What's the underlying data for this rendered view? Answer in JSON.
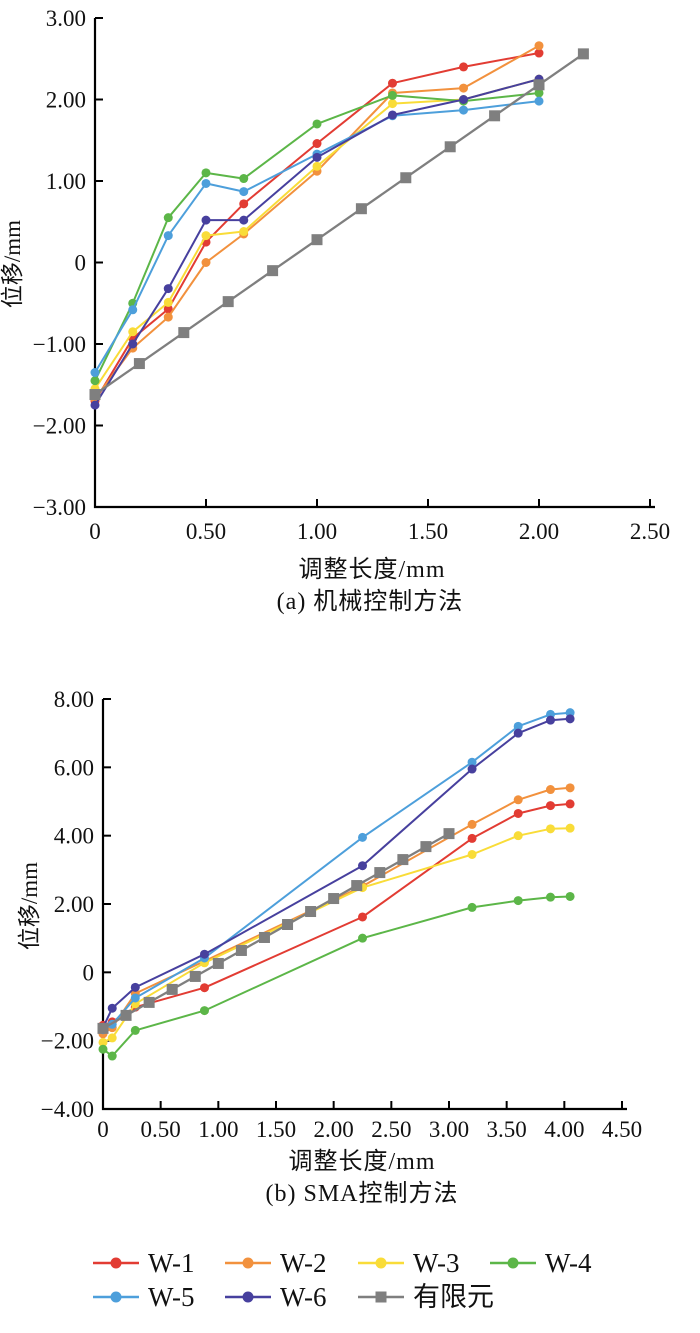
{
  "figure": {
    "panels": [
      {
        "id": "a",
        "xlabel": "调整长度/mm",
        "ylabel": "位移/mm",
        "caption": "(a) 机械控制方法"
      },
      {
        "id": "b",
        "xlabel": "调整长度/mm",
        "ylabel": "位移/mm",
        "caption": "(b) SMA控制方法"
      }
    ]
  },
  "colors": {
    "w1": "#e23c33",
    "w2": "#f2913d",
    "w3": "#f9dc38",
    "w4": "#5cb648",
    "w5": "#4d9fdb",
    "w6": "#47409e",
    "fem": "#7f7f7f",
    "axis": "#000000"
  },
  "legend": {
    "rows": [
      [
        {
          "label": "W-1",
          "color": "#e23c33",
          "marker": "circle"
        },
        {
          "label": "W-2",
          "color": "#f2913d",
          "marker": "circle"
        },
        {
          "label": "W-3",
          "color": "#f9dc38",
          "marker": "circle"
        },
        {
          "label": "W-4",
          "color": "#5cb648",
          "marker": "circle"
        }
      ],
      [
        {
          "label": "W-5",
          "color": "#4d9fdb",
          "marker": "circle"
        },
        {
          "label": "W-6",
          "color": "#47409e",
          "marker": "circle"
        },
        {
          "label": "有限元",
          "color": "#7f7f7f",
          "marker": "square"
        }
      ]
    ]
  },
  "chart_data": [
    {
      "id": "a",
      "type": "line",
      "title": "(a) 机械控制方法",
      "xlabel": "调整长度/mm",
      "ylabel": "位移/mm",
      "xlim": [
        0,
        2.5
      ],
      "ylim": [
        -3,
        3
      ],
      "grid": false,
      "xtick_values": [
        0,
        0.5,
        1.0,
        1.5,
        2.0,
        2.5
      ],
      "xtick_labels": [
        "0",
        "0.50",
        "1.00",
        "1.50",
        "2.00",
        "2.50"
      ],
      "ytick_values": [
        3,
        2,
        1,
        0,
        -1,
        -2,
        -3
      ],
      "ytick_labels": [
        "3.00",
        "2.00",
        "1.00",
        "0",
        "−1.00",
        "−2.00",
        "−3.00"
      ],
      "series": [
        {
          "name": "W-1",
          "color": "#e23c33",
          "marker": "circle",
          "x": [
            0,
            0.17,
            0.33,
            0.5,
            0.67,
            1.0,
            1.34,
            1.66,
            2.0
          ],
          "y": [
            -1.7,
            -0.93,
            -0.57,
            0.25,
            0.72,
            1.46,
            2.2,
            2.4,
            2.57
          ]
        },
        {
          "name": "W-2",
          "color": "#f2913d",
          "marker": "circle",
          "x": [
            0,
            0.17,
            0.33,
            0.5,
            0.67,
            1.0,
            1.34,
            1.66,
            2.0
          ],
          "y": [
            -1.67,
            -1.05,
            -0.67,
            0.0,
            0.35,
            1.12,
            2.08,
            2.14,
            2.66
          ]
        },
        {
          "name": "W-3",
          "color": "#f9dc38",
          "marker": "circle",
          "x": [
            0,
            0.17,
            0.33,
            0.5,
            0.67,
            1.0,
            1.34,
            1.66,
            2.0
          ],
          "y": [
            -1.55,
            -0.85,
            -0.49,
            0.33,
            0.38,
            1.18,
            1.95,
            2.0,
            2.25
          ]
        },
        {
          "name": "W-4",
          "color": "#5cb648",
          "marker": "circle",
          "x": [
            0,
            0.17,
            0.33,
            0.5,
            0.67,
            1.0,
            1.34,
            1.66,
            2.0
          ],
          "y": [
            -1.45,
            -0.5,
            0.55,
            1.1,
            1.03,
            1.7,
            2.05,
            1.98,
            2.08
          ]
        },
        {
          "name": "W-5",
          "color": "#4d9fdb",
          "marker": "circle",
          "x": [
            0,
            0.17,
            0.33,
            0.5,
            0.67,
            1.0,
            1.34,
            1.66,
            2.0
          ],
          "y": [
            -1.35,
            -0.58,
            0.33,
            0.97,
            0.87,
            1.33,
            1.8,
            1.87,
            1.98
          ]
        },
        {
          "name": "W-6",
          "color": "#47409e",
          "marker": "circle",
          "x": [
            0,
            0.17,
            0.33,
            0.5,
            0.67,
            1.0,
            1.34,
            1.66,
            2.0
          ],
          "y": [
            -1.75,
            -1.0,
            -0.32,
            0.52,
            0.52,
            1.29,
            1.81,
            2.0,
            2.25
          ]
        },
        {
          "name": "有限元",
          "color": "#7f7f7f",
          "marker": "square",
          "x": [
            0,
            0.2,
            0.4,
            0.6,
            0.8,
            1.0,
            1.2,
            1.4,
            1.6,
            1.8,
            2.0,
            2.2
          ],
          "y": [
            -1.62,
            -1.24,
            -0.86,
            -0.48,
            -0.1,
            0.28,
            0.66,
            1.04,
            1.42,
            1.8,
            2.18,
            2.56
          ]
        }
      ]
    },
    {
      "id": "b",
      "type": "line",
      "title": "(b) SMA控制方法",
      "xlabel": "调整长度/mm",
      "ylabel": "位移/mm",
      "xlim": [
        0,
        4.5
      ],
      "ylim": [
        -4,
        8
      ],
      "grid": false,
      "xtick_values": [
        0,
        0.5,
        1.0,
        1.5,
        2.0,
        2.5,
        3.0,
        3.5,
        4.0,
        4.5
      ],
      "xtick_labels": [
        "0",
        "0.50",
        "1.00",
        "1.50",
        "2.00",
        "2.50",
        "3.00",
        "3.50",
        "4.00",
        "4.50"
      ],
      "ytick_values": [
        8,
        6,
        4,
        2,
        0,
        -2,
        -4
      ],
      "ytick_labels": [
        "8.00",
        "6.00",
        "4.00",
        "2.00",
        "0",
        "−2.00",
        "−4.00"
      ],
      "series": [
        {
          "name": "W-1",
          "color": "#e23c33",
          "marker": "circle",
          "x": [
            0,
            0.08,
            0.28,
            0.88,
            2.25,
            3.2,
            3.6,
            3.88,
            4.05
          ],
          "y": [
            -1.55,
            -1.45,
            -1.02,
            -0.45,
            1.62,
            3.92,
            4.65,
            4.88,
            4.93
          ]
        },
        {
          "name": "W-2",
          "color": "#f2913d",
          "marker": "circle",
          "x": [
            0,
            0.08,
            0.28,
            0.88,
            2.25,
            3.2,
            3.6,
            3.88,
            4.05
          ],
          "y": [
            -1.8,
            -1.62,
            -0.62,
            0.33,
            2.52,
            4.33,
            5.05,
            5.35,
            5.4
          ]
        },
        {
          "name": "W-3",
          "color": "#f9dc38",
          "marker": "circle",
          "x": [
            0,
            0.08,
            0.28,
            0.88,
            2.25,
            3.2,
            3.6,
            3.88,
            4.05
          ],
          "y": [
            -2.05,
            -1.92,
            -0.92,
            0.28,
            2.48,
            3.45,
            4.0,
            4.2,
            4.22
          ]
        },
        {
          "name": "W-4",
          "color": "#5cb648",
          "marker": "circle",
          "x": [
            0,
            0.08,
            0.28,
            0.88,
            2.25,
            3.2,
            3.6,
            3.88,
            4.05
          ],
          "y": [
            -2.25,
            -2.45,
            -1.7,
            -1.12,
            1.0,
            1.9,
            2.1,
            2.2,
            2.22
          ]
        },
        {
          "name": "W-5",
          "color": "#4d9fdb",
          "marker": "circle",
          "x": [
            0,
            0.08,
            0.28,
            0.88,
            2.25,
            3.2,
            3.6,
            3.88,
            4.05
          ],
          "y": [
            -1.68,
            -1.52,
            -0.75,
            0.42,
            3.95,
            6.15,
            7.2,
            7.55,
            7.6
          ]
        },
        {
          "name": "W-6",
          "color": "#47409e",
          "marker": "circle",
          "x": [
            0,
            0.08,
            0.28,
            0.88,
            2.25,
            3.2,
            3.6,
            3.88,
            4.05
          ],
          "y": [
            -1.62,
            -1.05,
            -0.44,
            0.53,
            3.12,
            5.95,
            7.0,
            7.38,
            7.42
          ]
        },
        {
          "name": "有限元",
          "color": "#7f7f7f",
          "marker": "square",
          "x": [
            0,
            0.2,
            0.4,
            0.6,
            0.8,
            1.0,
            1.2,
            1.4,
            1.6,
            1.8,
            2.0,
            2.2,
            2.4,
            2.6,
            2.8,
            3.0
          ],
          "y": [
            -1.64,
            -1.26,
            -0.88,
            -0.5,
            -0.12,
            0.26,
            0.64,
            1.02,
            1.4,
            1.78,
            2.16,
            2.54,
            2.92,
            3.3,
            3.68,
            4.06
          ]
        }
      ]
    }
  ]
}
